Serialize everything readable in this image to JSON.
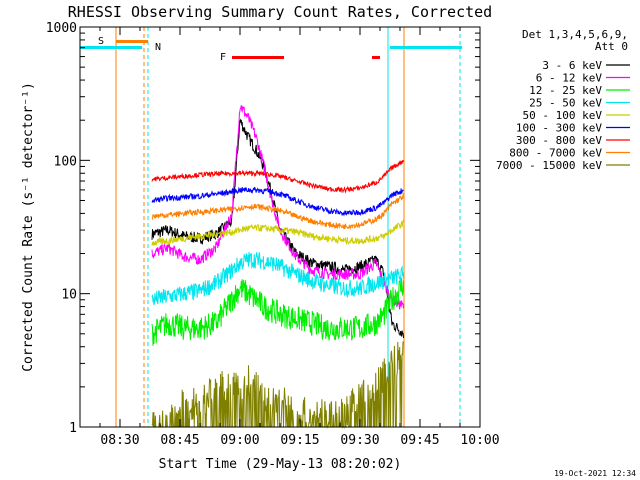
{
  "chart_data": {
    "type": "line",
    "title": "RHESSI Observing Summary Count Rates, Corrected",
    "xlabel": "Start Time (29-May-13 08:20:02)",
    "ylabel": "Corrected Count Rate (s⁻¹ detector⁻¹)",
    "yscale": "log",
    "xlim": [
      "08:20",
      "10:00"
    ],
    "ylim": [
      1,
      1000
    ],
    "x_ticks": [
      "08:30",
      "08:45",
      "09:00",
      "09:15",
      "09:30",
      "09:45",
      "10:00"
    ],
    "y_ticks": [
      "1",
      "10",
      "100",
      "1000"
    ],
    "legend_header": [
      "Det 1,3,4,5,6,9,",
      "Att 0"
    ],
    "legend_position": "right",
    "timestamp": "19-Oct-2021 12:34",
    "annotations": {
      "saa": {
        "label": "S",
        "color": "#ff7f00",
        "start": "08:29",
        "end": "08:37"
      },
      "night": {
        "label": "N",
        "color": "#00e5ee",
        "start": "08:20",
        "end": "08:38"
      },
      "night2": {
        "start": "09:37",
        "end": "09:55"
      },
      "flare": {
        "label": "F",
        "color": "#ff0000",
        "segments": [
          [
            "08:58",
            "09:11"
          ],
          [
            "09:33",
            "09:35"
          ]
        ]
      },
      "saa_line": "08:29",
      "dashed_orange": "08:36",
      "dashed_cyan": [
        "08:37",
        "09:55"
      ],
      "cyan_line": "09:37",
      "orange_line2": "09:41"
    },
    "data_start": "08:38",
    "data_end": "09:41",
    "x_samples": [
      "08:38",
      "08:42",
      "08:46",
      "08:50",
      "08:54",
      "08:58",
      "09:00",
      "09:02",
      "09:04",
      "09:06",
      "09:08",
      "09:10",
      "09:14",
      "09:18",
      "09:22",
      "09:26",
      "09:30",
      "09:34",
      "09:36",
      "09:38",
      "09:41"
    ],
    "series": [
      {
        "name": "3 - 6 keV",
        "color": "#000000",
        "values": [
          28,
          30,
          27,
          26,
          28,
          35,
          200,
          150,
          120,
          90,
          55,
          30,
          20,
          17,
          16,
          15,
          16,
          18,
          14,
          6,
          5
        ]
      },
      {
        "name": "6 - 12 keV",
        "color": "#ff00ff",
        "values": [
          20,
          22,
          19,
          18,
          22,
          40,
          260,
          210,
          150,
          90,
          50,
          30,
          19,
          15,
          14,
          14,
          14,
          17,
          12,
          9,
          8
        ]
      },
      {
        "name": "12 - 25 keV",
        "color": "#00ee00",
        "values": [
          5,
          6,
          5.5,
          5.5,
          6,
          9,
          11,
          10,
          9,
          8,
          7.5,
          7,
          6.5,
          6,
          5.5,
          5.5,
          5.5,
          6,
          7,
          9,
          12
        ]
      },
      {
        "name": "25 - 50 keV",
        "color": "#00e5ee",
        "values": [
          9,
          9.5,
          10,
          10.5,
          12,
          15,
          17,
          18,
          18,
          17.5,
          17,
          16,
          14,
          12.5,
          11.5,
          11,
          11,
          12,
          12.5,
          13,
          14
        ]
      },
      {
        "name": "50 - 100 keV",
        "color": "#cdcd00",
        "values": [
          24,
          25,
          26,
          27,
          28,
          29,
          30,
          31,
          31,
          31,
          30.5,
          30,
          29,
          27,
          26,
          25,
          25,
          26,
          27,
          30,
          34
        ]
      },
      {
        "name": "100 - 300 keV",
        "color": "#0000ff",
        "values": [
          50,
          52,
          53,
          54,
          56,
          58,
          60,
          60,
          60,
          59,
          58,
          56,
          50,
          45,
          42,
          40,
          41,
          44,
          48,
          55,
          60
        ]
      },
      {
        "name": "300 - 800 keV",
        "color": "#ff0000",
        "values": [
          72,
          74,
          76,
          78,
          79,
          80,
          80,
          80,
          80,
          79,
          78,
          76,
          70,
          65,
          61,
          60,
          62,
          68,
          76,
          88,
          100
        ]
      },
      {
        "name": "800 - 7000 keV",
        "color": "#ff7f00",
        "values": [
          38,
          39,
          40,
          41,
          42,
          43,
          44,
          45,
          45,
          44,
          43,
          42,
          38,
          35,
          33,
          32,
          33,
          36,
          40,
          47,
          54
        ]
      },
      {
        "name": "7000 - 15000 keV",
        "color": "#808000",
        "values": [
          1,
          1,
          1.5,
          1.5,
          2,
          2,
          1.8,
          2.2,
          2,
          1.6,
          1.5,
          1.6,
          1.3,
          1.2,
          1.2,
          1.3,
          1.6,
          2,
          2.5,
          3,
          3.5
        ]
      }
    ]
  }
}
